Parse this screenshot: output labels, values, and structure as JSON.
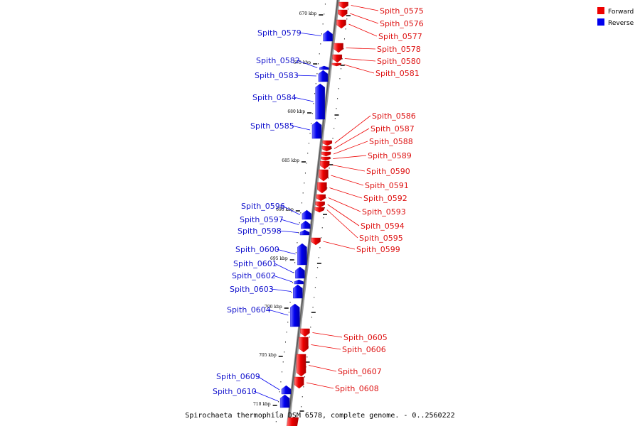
{
  "caption": "Spirochaeta thermophila DSM 6578, complete genome. - 0..2560222",
  "legend": [
    {
      "label": "Forward",
      "color": "#ee0000"
    },
    {
      "label": "Reverse",
      "color": "#0000ee"
    }
  ],
  "ticks": [
    {
      "label": "670 kbp"
    },
    {
      "label": "675 kbp"
    },
    {
      "label": "680 kbp"
    },
    {
      "label": "685 kbp"
    },
    {
      "label": "690 kbp"
    },
    {
      "label": "695 kbp"
    },
    {
      "label": "700 kbp"
    },
    {
      "label": "705 kbp"
    },
    {
      "label": "710 kbp"
    }
  ],
  "genes": [
    {
      "name": "Spith_0575",
      "strand": "forward"
    },
    {
      "name": "Spith_0576",
      "strand": "forward"
    },
    {
      "name": "Spith_0577",
      "strand": "forward"
    },
    {
      "name": "Spith_0578",
      "strand": "forward"
    },
    {
      "name": "Spith_0579",
      "strand": "reverse"
    },
    {
      "name": "Spith_0580",
      "strand": "forward"
    },
    {
      "name": "Spith_0581",
      "strand": "forward"
    },
    {
      "name": "Spith_0582",
      "strand": "reverse"
    },
    {
      "name": "Spith_0583",
      "strand": "reverse"
    },
    {
      "name": "Spith_0584",
      "strand": "reverse"
    },
    {
      "name": "Spith_0585",
      "strand": "reverse"
    },
    {
      "name": "Spith_0586",
      "strand": "forward"
    },
    {
      "name": "Spith_0587",
      "strand": "forward"
    },
    {
      "name": "Spith_0588",
      "strand": "forward"
    },
    {
      "name": "Spith_0589",
      "strand": "forward"
    },
    {
      "name": "Spith_0590",
      "strand": "forward"
    },
    {
      "name": "Spith_0591",
      "strand": "forward"
    },
    {
      "name": "Spith_0592",
      "strand": "forward"
    },
    {
      "name": "Spith_0593",
      "strand": "forward"
    },
    {
      "name": "Spith_0594",
      "strand": "forward"
    },
    {
      "name": "Spith_0595",
      "strand": "forward"
    },
    {
      "name": "Spith_0596",
      "strand": "reverse"
    },
    {
      "name": "Spith_0597",
      "strand": "reverse"
    },
    {
      "name": "Spith_0598",
      "strand": "reverse"
    },
    {
      "name": "Spith_0599",
      "strand": "forward"
    },
    {
      "name": "Spith_0600",
      "strand": "reverse"
    },
    {
      "name": "Spith_0601",
      "strand": "reverse"
    },
    {
      "name": "Spith_0602",
      "strand": "reverse"
    },
    {
      "name": "Spith_0603",
      "strand": "reverse"
    },
    {
      "name": "Spith_0604",
      "strand": "reverse"
    },
    {
      "name": "Spith_0605",
      "strand": "forward"
    },
    {
      "name": "Spith_0606",
      "strand": "forward"
    },
    {
      "name": "Spith_0607",
      "strand": "forward"
    },
    {
      "name": "Spith_0608",
      "strand": "forward"
    },
    {
      "name": "Spith_0609",
      "strand": "reverse"
    },
    {
      "name": "Spith_0610",
      "strand": "reverse"
    }
  ]
}
